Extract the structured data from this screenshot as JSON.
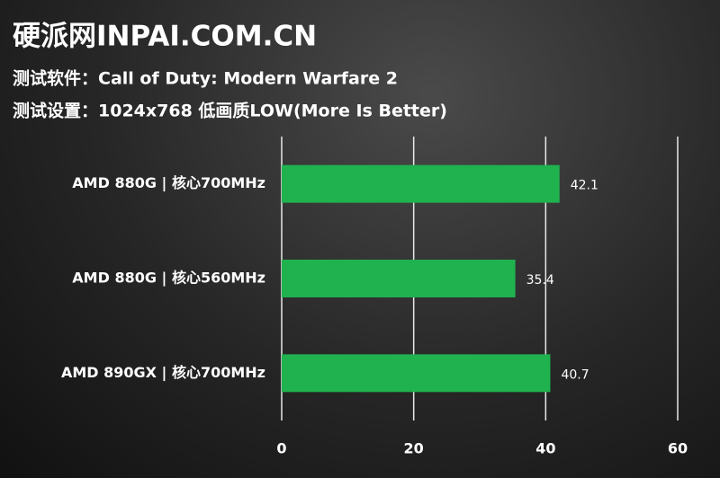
{
  "chart_data": {
    "type": "bar",
    "orientation": "horizontal",
    "title": "硬派网INPAI.COM.CN",
    "subtitles": [
      "测试软件：Call of Duty: Modern Warfare 2",
      "测试设置：1024x768 低画质LOW(More Is Better)"
    ],
    "categories": [
      "AMD 880G | 核心700MHz",
      "AMD 880G | 核心560MHz",
      "AMD 890GX | 核心700MHz"
    ],
    "values": [
      42.1,
      35.4,
      40.7
    ],
    "color": "#1fb24f",
    "xlim": [
      0,
      60
    ],
    "xticks": [
      0,
      20,
      40,
      60
    ],
    "grid": true
  }
}
